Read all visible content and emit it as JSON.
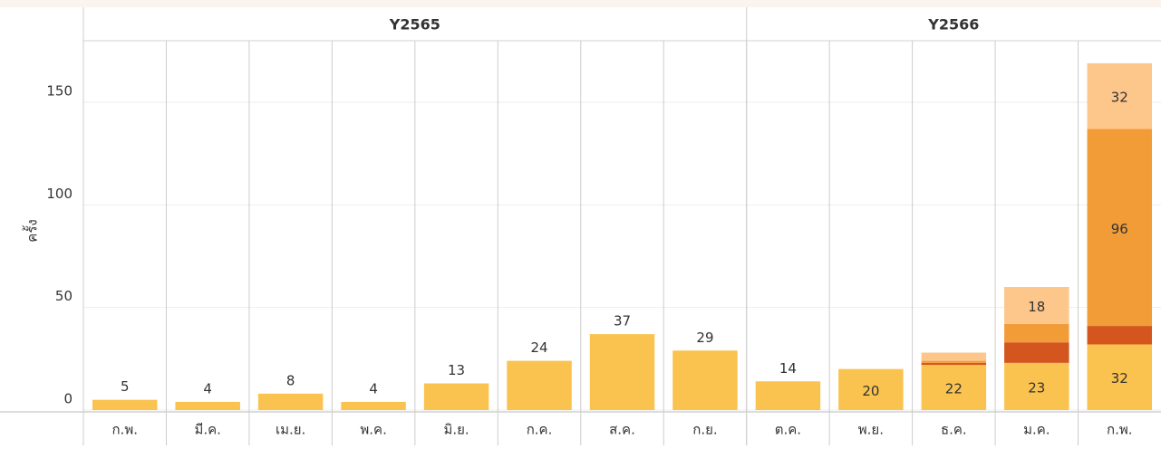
{
  "chart_data": {
    "type": "stacked_bar",
    "y_label": "ครั้ง",
    "groups": [
      {
        "label": "Y2565",
        "categories": [
          "ก.พ.",
          "มี.ค.",
          "เม.ย.",
          "พ.ค.",
          "มิ.ย.",
          "ก.ค.",
          "ส.ค.",
          "ก.ย."
        ]
      },
      {
        "label": "Y2566",
        "categories": [
          "ต.ค.",
          "พ.ย.",
          "ธ.ค.",
          "ม.ค.",
          "ก.พ."
        ]
      }
    ],
    "series": [
      {
        "color": "#fac24e",
        "values": [
          5,
          4,
          8,
          4,
          13,
          24,
          37,
          29,
          14,
          20,
          22,
          23,
          32
        ],
        "value_labels": [
          "5",
          "4",
          "8",
          "4",
          "13",
          "24",
          "37",
          "29",
          "14",
          "20",
          "22",
          "23",
          "32"
        ]
      },
      {
        "color": "#d4561e",
        "values": [
          null,
          null,
          null,
          null,
          null,
          null,
          null,
          null,
          null,
          null,
          1,
          10,
          9
        ],
        "value_labels": [
          null,
          null,
          null,
          null,
          null,
          null,
          null,
          null,
          null,
          null,
          null,
          null,
          null
        ]
      },
      {
        "color": "#f29c38",
        "values": [
          null,
          null,
          null,
          null,
          null,
          null,
          null,
          null,
          null,
          null,
          1,
          9,
          96
        ],
        "value_labels": [
          null,
          null,
          null,
          null,
          null,
          null,
          null,
          null,
          null,
          null,
          null,
          null,
          "96"
        ]
      },
      {
        "color": "#fdc68a",
        "values": [
          null,
          null,
          null,
          null,
          null,
          null,
          null,
          null,
          null,
          null,
          4,
          18,
          32
        ],
        "value_labels": [
          null,
          null,
          null,
          null,
          null,
          null,
          null,
          null,
          null,
          null,
          null,
          "18",
          "32"
        ]
      }
    ],
    "ylim": [
      0,
      180
    ],
    "yticks": [
      0,
      50,
      100,
      150
    ],
    "grid": true
  }
}
